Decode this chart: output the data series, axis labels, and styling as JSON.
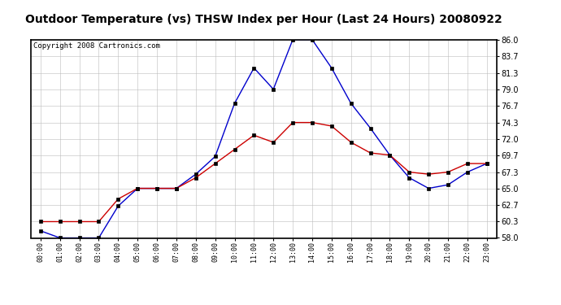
{
  "title": "Outdoor Temperature (vs) THSW Index per Hour (Last 24 Hours) 20080922",
  "copyright": "Copyright 2008 Cartronics.com",
  "hours": [
    "00:00",
    "01:00",
    "02:00",
    "03:00",
    "04:00",
    "05:00",
    "06:00",
    "07:00",
    "08:00",
    "09:00",
    "10:00",
    "11:00",
    "12:00",
    "13:00",
    "14:00",
    "15:00",
    "16:00",
    "17:00",
    "18:00",
    "19:00",
    "20:00",
    "21:00",
    "22:00",
    "23:00"
  ],
  "temp": [
    60.3,
    60.3,
    60.3,
    60.3,
    63.5,
    65.0,
    65.0,
    65.0,
    66.5,
    68.5,
    70.5,
    72.5,
    71.5,
    74.3,
    74.3,
    73.8,
    71.5,
    70.0,
    69.7,
    67.3,
    67.0,
    67.3,
    68.5,
    68.5
  ],
  "thsw": [
    59.0,
    58.0,
    58.0,
    58.0,
    62.5,
    65.0,
    65.0,
    65.0,
    67.0,
    69.5,
    77.0,
    82.0,
    79.0,
    86.0,
    86.0,
    82.0,
    77.0,
    73.5,
    69.7,
    66.5,
    65.0,
    65.5,
    67.3,
    68.5
  ],
  "ylim_min": 58.0,
  "ylim_max": 86.0,
  "yticks": [
    58.0,
    60.3,
    62.7,
    65.0,
    67.3,
    69.7,
    72.0,
    74.3,
    76.7,
    79.0,
    81.3,
    83.7,
    86.0
  ],
  "temp_color": "#cc0000",
  "thsw_color": "#0000cc",
  "bg_color": "#ffffff",
  "plot_bg_color": "#ffffff",
  "grid_color": "#bbbbbb",
  "title_fontsize": 10,
  "copyright_fontsize": 6.5
}
